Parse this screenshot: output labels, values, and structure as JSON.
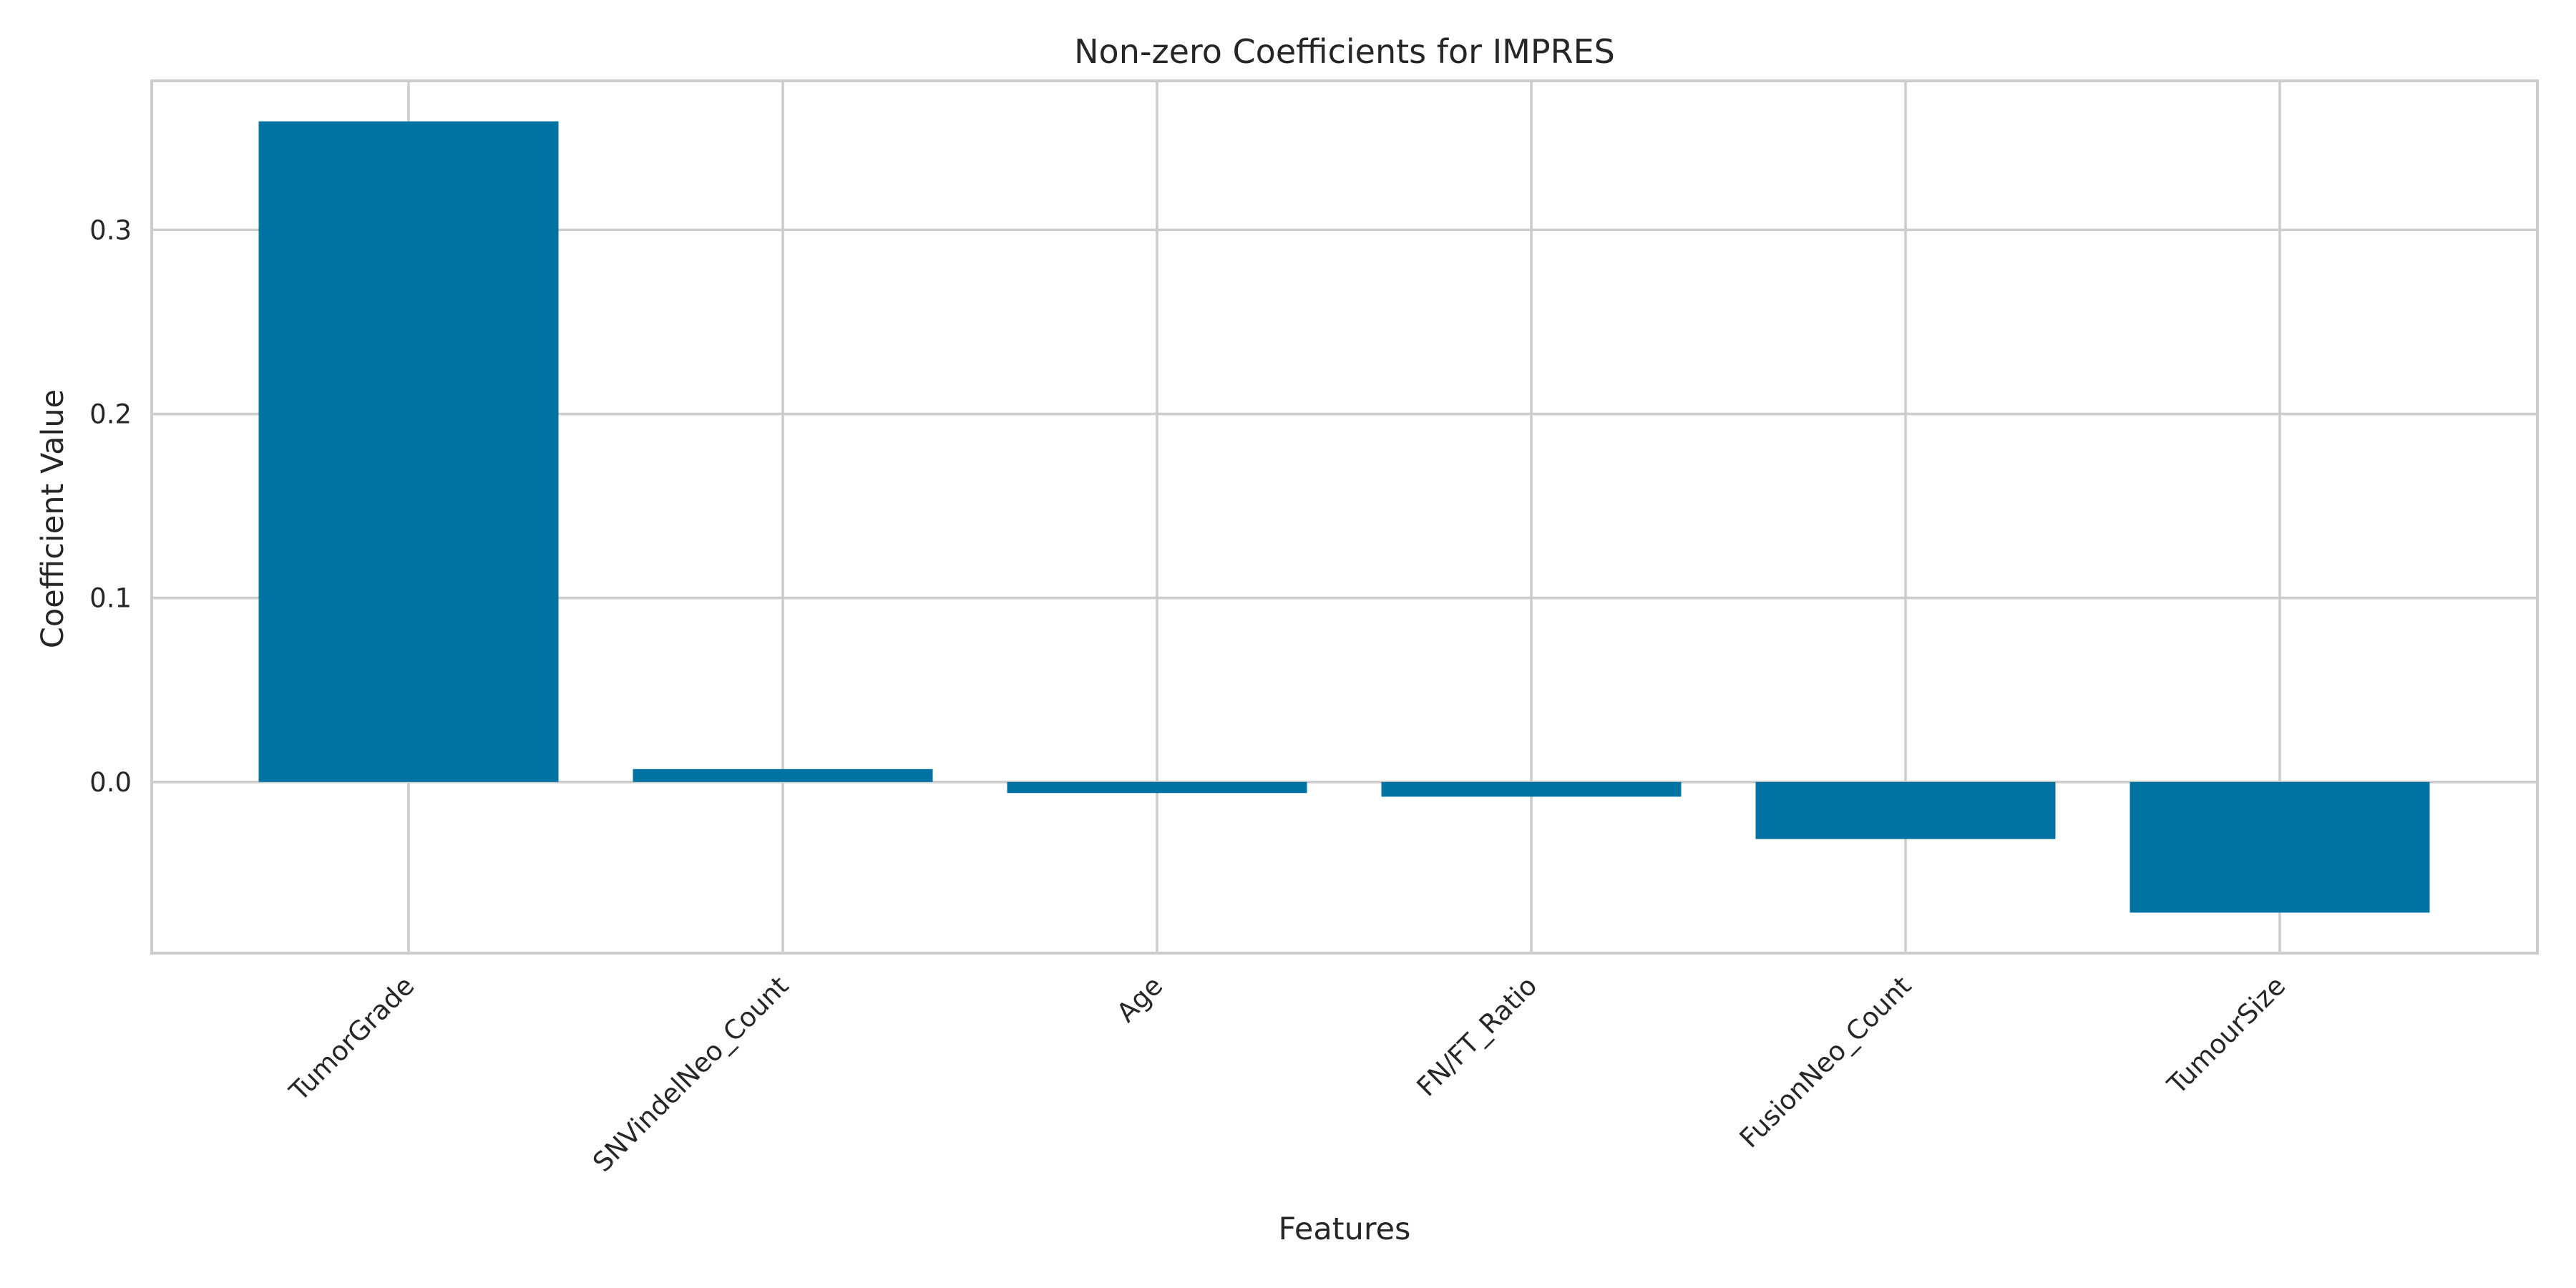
{
  "chart_data": {
    "type": "bar",
    "title": "Non-zero Coefficients for IMPRES",
    "xlabel": "Features",
    "ylabel": "Coefficient Value",
    "categories": [
      "TumorGrade",
      "SNVindelNeo_Count",
      "Age",
      "FN/FT_Ratio",
      "FusionNeo_Count",
      "TumourSize"
    ],
    "values": [
      0.359,
      0.007,
      -0.006,
      -0.008,
      -0.031,
      -0.071
    ],
    "ylim": [
      -0.093,
      0.381
    ],
    "yticks": [
      0.0,
      0.1,
      0.2,
      0.3
    ],
    "ytick_labels": [
      "0.0",
      "0.1",
      "0.2",
      "0.3"
    ],
    "grid": true,
    "bar_color": "#0173a2"
  }
}
